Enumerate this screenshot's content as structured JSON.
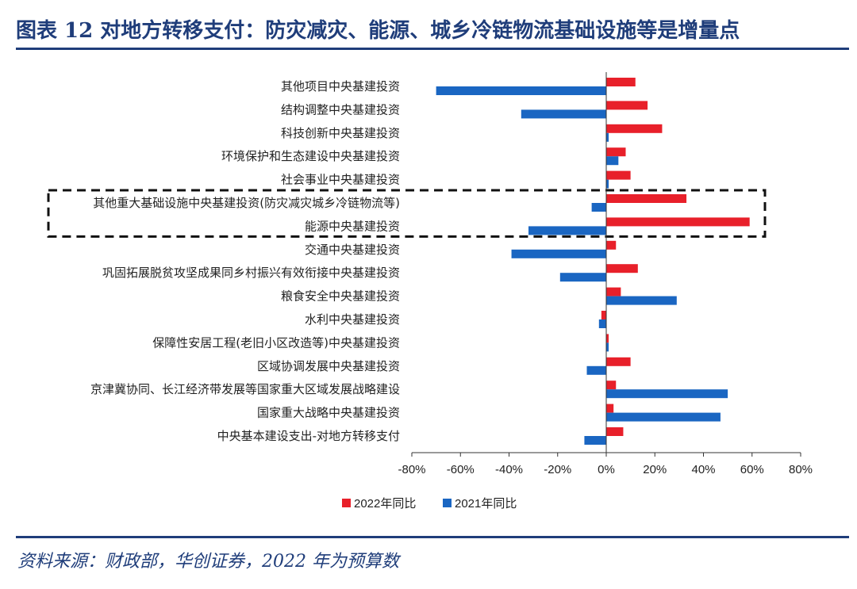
{
  "header": {
    "title": "图表 12 对地方转移支付：防灾减灾、能源、城乡冷链物流基础设施等是增量点"
  },
  "source": "资料来源：财政部，华创证券，2022 年为预算数",
  "colors": {
    "series_2022": "#e8202a",
    "series_2021": "#1a66c2",
    "accent": "#1f3d7a"
  },
  "chart_data": {
    "type": "bar",
    "orientation": "horizontal",
    "title": "",
    "categories": [
      "其他项目中央基建投资",
      "结构调整中央基建投资",
      "科技创新中央基建投资",
      "环境保护和生态建设中央基建投资",
      "社会事业中央基建投资",
      "其他重大基础设施中央基建投资(防灾减灾城乡冷链物流等)",
      "能源中央基建投资",
      "交通中央基建投资",
      "巩固拓展脱贫攻坚成果同乡村振兴有效衔接中央基建投资",
      "粮食安全中央基建投资",
      "水利中央基建投资",
      "保障性安居工程(老旧小区改造等)中央基建投资",
      "区域协调发展中央基建投资",
      "京津冀协同、长江经济带发展等国家重大区域发展战略建设",
      "国家重大战略中央基建投资",
      "中央基本建设支出-对地方转移支付"
    ],
    "series": [
      {
        "name": "2022年同比",
        "values": [
          12,
          17,
          23,
          8,
          10,
          33,
          59,
          4,
          13,
          6,
          -2,
          1,
          10,
          4,
          3,
          7
        ]
      },
      {
        "name": "2021年同比",
        "values": [
          -70,
          -35,
          1,
          5,
          1,
          -6,
          -32,
          -39,
          -19,
          29,
          -3,
          1,
          -8,
          50,
          47,
          -9
        ]
      }
    ],
    "xlim": [
      -80,
      80
    ],
    "xticks": [
      -80,
      -60,
      -40,
      -20,
      0,
      20,
      40,
      60,
      80
    ],
    "xtick_labels": [
      "-80%",
      "-60%",
      "-40%",
      "-20%",
      "0%",
      "20%",
      "40%",
      "60%",
      "80%"
    ],
    "xlabel": "",
    "ylabel": "",
    "grid": false,
    "legend_position": "bottom-center",
    "highlight_categories": [
      5,
      6
    ]
  }
}
